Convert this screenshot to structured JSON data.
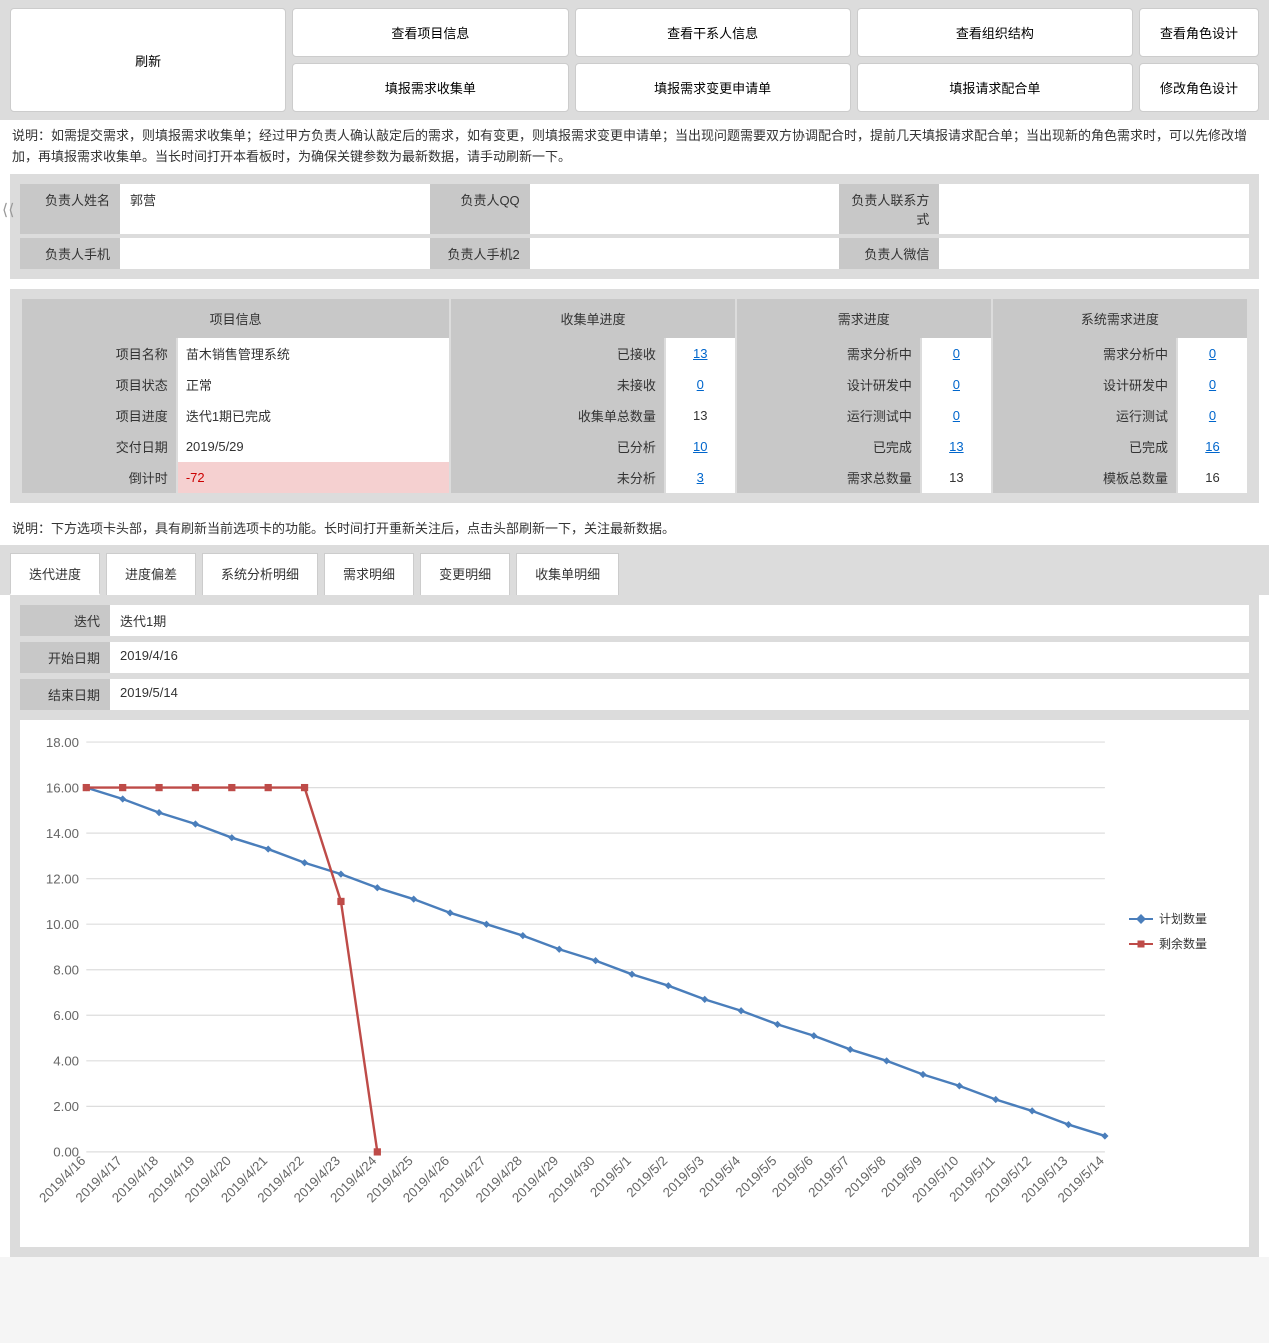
{
  "buttons": {
    "view_project": "查看项目信息",
    "view_stakeholder": "查看干系人信息",
    "view_org": "查看组织结构",
    "view_role": "查看角色设计",
    "fill_collect": "填报需求收集单",
    "fill_change": "填报需求变更申请单",
    "fill_coop": "填报请求配合单",
    "modify_role": "修改角色设计",
    "refresh": "刷新"
  },
  "explain1": "说明：如需提交需求，则填报需求收集单；经过甲方负责人确认敲定后的需求，如有变更，则填报需求变更申请单；当出现问题需要双方协调配合时，提前几天填报请求配合单；当出现新的角色需求时，可以先修改增加，再填报需求收集单。当长时间打开本看板时，为确保关键参数为最新数据，请手动刷新一下。",
  "owner": {
    "name_label": "负责人姓名",
    "name_value": "郭营",
    "qq_label": "负责人QQ",
    "qq_value": "",
    "contact_label": "负责人联系方式",
    "contact_value": "",
    "phone_label": "负责人手机",
    "phone_value": "",
    "phone2_label": "负责人手机2",
    "phone2_value": "",
    "wechat_label": "负责人微信",
    "wechat_value": ""
  },
  "stats": {
    "headers": [
      "项目信息",
      "收集单进度",
      "需求进度",
      "系统需求进度"
    ],
    "rows": [
      {
        "c1l": "项目名称",
        "c1v": "苗木销售管理系统",
        "c2l": "已接收",
        "c2v": "13",
        "c2link": true,
        "c3l": "需求分析中",
        "c3v": "0",
        "c3link": true,
        "c4l": "需求分析中",
        "c4v": "0",
        "c4link": true
      },
      {
        "c1l": "项目状态",
        "c1v": "正常",
        "c2l": "未接收",
        "c2v": "0",
        "c2link": true,
        "c3l": "设计研发中",
        "c3v": "0",
        "c3link": true,
        "c4l": "设计研发中",
        "c4v": "0",
        "c4link": true
      },
      {
        "c1l": "项目进度",
        "c1v": "迭代1期已完成",
        "c2l": "收集单总数量",
        "c2v": "13",
        "c2link": false,
        "c3l": "运行测试中",
        "c3v": "0",
        "c3link": true,
        "c4l": "运行测试",
        "c4v": "0",
        "c4link": true
      },
      {
        "c1l": "交付日期",
        "c1v": "2019/5/29",
        "c2l": "已分析",
        "c2v": "10",
        "c2link": true,
        "c3l": "已完成",
        "c3v": "13",
        "c3link": true,
        "c4l": "已完成",
        "c4v": "16",
        "c4link": true
      },
      {
        "c1l": "倒计时",
        "c1v": "-72",
        "c1neg": true,
        "c2l": "未分析",
        "c2v": "3",
        "c2link": true,
        "c3l": "需求总数量",
        "c3v": "13",
        "c3link": false,
        "c4l": "模板总数量",
        "c4v": "16",
        "c4link": false
      }
    ]
  },
  "explain2": "说明：下方选项卡头部，具有刷新当前选项卡的功能。长时间打开重新关注后，点击头部刷新一下，关注最新数据。",
  "tabs": [
    "迭代进度",
    "进度偏差",
    "系统分析明细",
    "需求明细",
    "变更明细",
    "收集单明细"
  ],
  "iteration": {
    "iter_label": "迭代",
    "iter_value": "迭代1期",
    "start_label": "开始日期",
    "start_value": "2019/4/16",
    "end_label": "结束日期",
    "end_value": "2019/5/14"
  },
  "chart": {
    "type": "line",
    "ylim": [
      0,
      18
    ],
    "ytick_step": 2,
    "y_ticks": [
      "0.00",
      "2.00",
      "4.00",
      "6.00",
      "8.00",
      "10.00",
      "12.00",
      "14.00",
      "16.00",
      "18.00"
    ],
    "x_labels": [
      "2019/4/16",
      "2019/4/17",
      "2019/4/18",
      "2019/4/19",
      "2019/4/20",
      "2019/4/21",
      "2019/4/22",
      "2019/4/23",
      "2019/4/24",
      "2019/4/25",
      "2019/4/26",
      "2019/4/27",
      "2019/4/28",
      "2019/4/29",
      "2019/4/30",
      "2019/5/1",
      "2019/5/2",
      "2019/5/3",
      "2019/5/4",
      "2019/5/5",
      "2019/5/6",
      "2019/5/7",
      "2019/5/8",
      "2019/5/9",
      "2019/5/10",
      "2019/5/11",
      "2019/5/12",
      "2019/5/13",
      "2019/5/14"
    ],
    "series": [
      {
        "name": "计划数量",
        "color": "#4a7ebb",
        "marker": "diamond",
        "data": [
          16.0,
          15.5,
          14.9,
          14.4,
          13.8,
          13.3,
          12.7,
          12.2,
          11.6,
          11.1,
          10.5,
          10.0,
          9.5,
          8.9,
          8.4,
          7.8,
          7.3,
          6.7,
          6.2,
          5.6,
          5.1,
          4.5,
          4.0,
          3.4,
          2.9,
          2.3,
          1.8,
          1.2,
          0.7
        ]
      },
      {
        "name": "剩余数量",
        "color": "#be4b48",
        "marker": "square",
        "data": [
          16,
          16,
          16,
          16,
          16,
          16,
          16,
          11,
          0
        ]
      }
    ],
    "legend_labels": {
      "plan": "计划数量",
      "remain": "剩余数量"
    },
    "background_color": "#ffffff",
    "grid_color": "#dddddd",
    "axis_font_size": 11,
    "line_width": 2,
    "marker_size": 6
  }
}
